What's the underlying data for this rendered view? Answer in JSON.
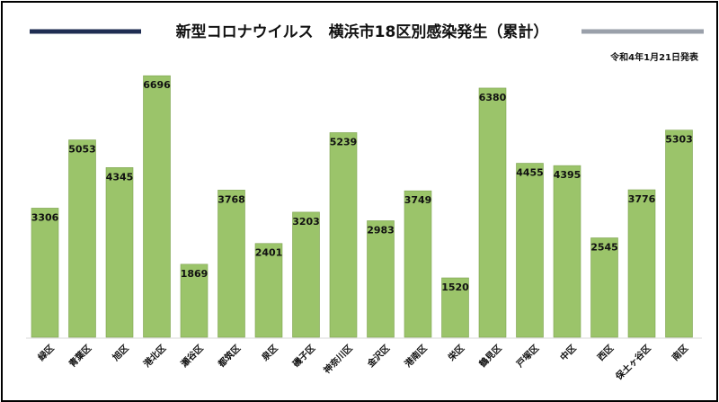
{
  "chart_data": {
    "type": "bar",
    "title": "新型コロナウイルス　横浜市18区別感染発生（累計）",
    "subtitle": "令和4年1月21日発表",
    "categories": [
      "緑区",
      "青葉区",
      "旭区",
      "港北区",
      "瀬谷区",
      "都筑区",
      "泉区",
      "磯子区",
      "神奈川区",
      "金沢区",
      "港南区",
      "栄区",
      "鶴見区",
      "戸塚区",
      "中区",
      "西区",
      "保土ヶ谷区",
      "南区"
    ],
    "values": [
      3306,
      5053,
      4345,
      6696,
      1869,
      3768,
      2401,
      3203,
      5239,
      2983,
      3749,
      1520,
      6380,
      4455,
      4395,
      2545,
      3776,
      5303
    ],
    "ylim": [
      0,
      7000
    ],
    "grid": false,
    "colors": {
      "bar": "#9BC46A",
      "title_line_left": "#1F2D52",
      "title_line_right": "#9AA0AA"
    }
  }
}
